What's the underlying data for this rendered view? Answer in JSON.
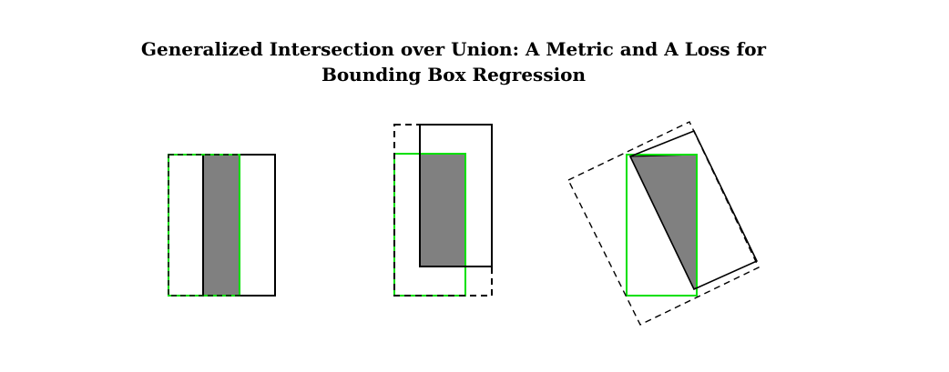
{
  "title": "Generalized Intersection over Union: A Metric and A Loss for Bounding Box Regression",
  "colors": {
    "ground_truth_box": "#00e000",
    "predicted_box": "#000000",
    "enclosing_box": "#000000",
    "intersection_fill": "#808080",
    "background": "#ffffff"
  },
  "diagrams": [
    {
      "id": "axis-aligned-same-height",
      "boxes": [
        "ground-truth",
        "predicted",
        "enclosing-dashed",
        "intersection"
      ]
    },
    {
      "id": "axis-aligned-offset",
      "boxes": [
        "ground-truth",
        "predicted",
        "enclosing-dashed",
        "intersection"
      ]
    },
    {
      "id": "rotated",
      "boxes": [
        "ground-truth",
        "predicted-rotated",
        "enclosing-dashed-rotated",
        "intersection-polygon"
      ]
    }
  ]
}
